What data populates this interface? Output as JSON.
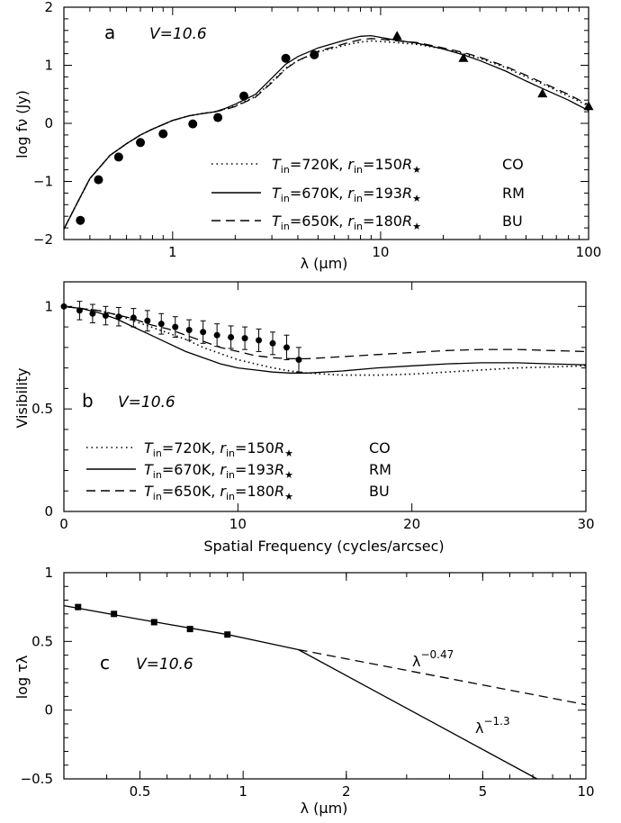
{
  "chart_data": [
    {
      "panel": "a",
      "type": "line",
      "label": "a",
      "annotation": "V=10.6",
      "xlabel": "λ (μm)",
      "ylabel": "log fν (Jy)",
      "xscale": "log",
      "xlim": [
        0.3,
        100
      ],
      "ylim": [
        -2,
        2
      ],
      "xticks": [
        1,
        10,
        100
      ],
      "xticklabels": [
        "1",
        "10",
        "100"
      ],
      "yticks": [
        -2,
        -1,
        0,
        1,
        2
      ],
      "yticklabels": [
        "−2",
        "−1",
        "0",
        "1",
        "2"
      ],
      "legend": {
        "placement": "bottom-right",
        "entries": [
          {
            "style": "dotted",
            "t_in": "720K",
            "r_in": "150",
            "tag": "CO"
          },
          {
            "style": "solid",
            "t_in": "670K",
            "r_in": "193",
            "tag": "RM"
          },
          {
            "style": "dashed",
            "t_in": "650K",
            "r_in": "180",
            "tag": "BU"
          }
        ]
      },
      "series": [
        {
          "style": "solid",
          "x": [
            0.3,
            0.35,
            0.4,
            0.5,
            0.6,
            0.7,
            0.8,
            1.0,
            1.2,
            1.4,
            1.6,
            1.8,
            2.0,
            2.5,
            3.0,
            3.5,
            4.0,
            5.0,
            6.0,
            7.0,
            8.0,
            9.0,
            10,
            12,
            15,
            20,
            25,
            30,
            40,
            50,
            60,
            80,
            100
          ],
          "y": [
            -1.82,
            -1.35,
            -0.95,
            -0.55,
            -0.35,
            -0.2,
            -0.1,
            0.05,
            0.13,
            0.17,
            0.2,
            0.26,
            0.33,
            0.5,
            0.78,
            1.02,
            1.15,
            1.3,
            1.38,
            1.45,
            1.5,
            1.51,
            1.48,
            1.43,
            1.38,
            1.28,
            1.18,
            1.08,
            0.9,
            0.73,
            0.6,
            0.4,
            0.22
          ]
        },
        {
          "style": "dotted",
          "x": [
            0.3,
            0.35,
            0.4,
            0.5,
            0.6,
            0.7,
            0.8,
            1.0,
            1.2,
            1.4,
            1.6,
            1.8,
            2.0,
            2.5,
            3.0,
            3.5,
            4.0,
            5.0,
            6.0,
            7.0,
            8.0,
            9.0,
            10,
            12,
            15,
            20,
            25,
            30,
            40,
            50,
            60,
            80,
            100
          ],
          "y": [
            -1.82,
            -1.35,
            -0.95,
            -0.55,
            -0.35,
            -0.2,
            -0.1,
            0.05,
            0.13,
            0.17,
            0.2,
            0.25,
            0.3,
            0.46,
            0.72,
            0.95,
            1.08,
            1.23,
            1.3,
            1.36,
            1.4,
            1.42,
            1.41,
            1.39,
            1.36,
            1.28,
            1.2,
            1.12,
            0.96,
            0.8,
            0.68,
            0.47,
            0.3
          ]
        },
        {
          "style": "dashed",
          "x": [
            0.3,
            0.35,
            0.4,
            0.5,
            0.6,
            0.7,
            0.8,
            1.0,
            1.2,
            1.4,
            1.6,
            1.8,
            2.0,
            2.5,
            3.0,
            3.5,
            4.0,
            5.0,
            6.0,
            7.0,
            8.0,
            9.0,
            10,
            12,
            15,
            20,
            25,
            30,
            40,
            50,
            60,
            80,
            100
          ],
          "y": [
            -1.82,
            -1.35,
            -0.95,
            -0.55,
            -0.35,
            -0.2,
            -0.1,
            0.05,
            0.13,
            0.17,
            0.2,
            0.24,
            0.29,
            0.45,
            0.7,
            0.94,
            1.08,
            1.24,
            1.32,
            1.39,
            1.44,
            1.46,
            1.45,
            1.42,
            1.39,
            1.3,
            1.22,
            1.14,
            0.98,
            0.83,
            0.7,
            0.5,
            0.32
          ]
        }
      ],
      "points": {
        "circles": {
          "x": [
            0.36,
            0.44,
            0.55,
            0.7,
            0.9,
            1.25,
            1.65,
            2.2,
            3.5,
            4.8
          ],
          "y": [
            -1.67,
            -0.97,
            -0.58,
            -0.33,
            -0.18,
            -0.01,
            0.1,
            0.47,
            1.12,
            1.18
          ]
        },
        "triangles": {
          "x": [
            12,
            25,
            60,
            100
          ],
          "y": [
            1.5,
            1.12,
            0.51,
            0.29
          ]
        }
      }
    },
    {
      "panel": "b",
      "type": "line",
      "label": "b",
      "annotation": "V=10.6",
      "xlabel": "Spatial Frequency (cycles/arcsec)",
      "ylabel": "Visibility",
      "xlim": [
        0,
        30
      ],
      "ylim": [
        0,
        1.12
      ],
      "xticks": [
        0,
        10,
        20,
        30
      ],
      "xticklabels": [
        "0",
        "10",
        "20",
        "30"
      ],
      "yticks": [
        0,
        0.5,
        1
      ],
      "yticklabels": [
        "0",
        "0.5",
        "1"
      ],
      "legend": {
        "placement": "bottom-left",
        "entries": [
          {
            "style": "dotted",
            "t_in": "720K",
            "r_in": "150",
            "tag": "CO"
          },
          {
            "style": "solid",
            "t_in": "670K",
            "r_in": "193",
            "tag": "RM"
          },
          {
            "style": "dashed",
            "t_in": "650K",
            "r_in": "180",
            "tag": "BU"
          }
        ]
      },
      "series": [
        {
          "style": "solid",
          "x": [
            0,
            1,
            2,
            3,
            4,
            5,
            6,
            7,
            8,
            9,
            10,
            11,
            12,
            13,
            14,
            16,
            18,
            20,
            22,
            24,
            26,
            28,
            30
          ],
          "y": [
            1.0,
            0.99,
            0.97,
            0.94,
            0.9,
            0.86,
            0.82,
            0.78,
            0.75,
            0.72,
            0.7,
            0.69,
            0.68,
            0.675,
            0.675,
            0.685,
            0.7,
            0.71,
            0.72,
            0.725,
            0.725,
            0.72,
            0.715
          ]
        },
        {
          "style": "dotted",
          "x": [
            0,
            1,
            2,
            3,
            4,
            5,
            6,
            7,
            8,
            9,
            10,
            11,
            12,
            13,
            14,
            16,
            18,
            20,
            22,
            24,
            26,
            28,
            30
          ],
          "y": [
            1.0,
            0.99,
            0.98,
            0.96,
            0.93,
            0.9,
            0.87,
            0.84,
            0.8,
            0.77,
            0.74,
            0.72,
            0.7,
            0.685,
            0.675,
            0.665,
            0.665,
            0.67,
            0.68,
            0.69,
            0.7,
            0.705,
            0.71
          ]
        },
        {
          "style": "dashed",
          "x": [
            0,
            1,
            2,
            3,
            4,
            5,
            6,
            7,
            8,
            9,
            10,
            11,
            12,
            13,
            14,
            16,
            18,
            20,
            22,
            24,
            26,
            28,
            30
          ],
          "y": [
            1.0,
            0.99,
            0.98,
            0.96,
            0.94,
            0.91,
            0.89,
            0.86,
            0.83,
            0.8,
            0.78,
            0.76,
            0.75,
            0.745,
            0.745,
            0.755,
            0.765,
            0.775,
            0.785,
            0.79,
            0.79,
            0.785,
            0.78
          ]
        }
      ],
      "points": {
        "x": [
          0,
          0.9,
          1.65,
          2.4,
          3.15,
          4.0,
          4.8,
          5.6,
          6.4,
          7.2,
          8.0,
          8.8,
          9.6,
          10.4,
          11.2,
          12.0,
          12.8,
          13.5
        ],
        "y": [
          1.0,
          0.98,
          0.965,
          0.955,
          0.95,
          0.945,
          0.93,
          0.915,
          0.9,
          0.885,
          0.875,
          0.86,
          0.85,
          0.845,
          0.835,
          0.82,
          0.8,
          0.74
        ],
        "err": [
          0.0,
          0.045,
          0.045,
          0.045,
          0.045,
          0.045,
          0.05,
          0.05,
          0.05,
          0.05,
          0.055,
          0.055,
          0.055,
          0.055,
          0.055,
          0.055,
          0.06,
          0.06
        ]
      }
    },
    {
      "panel": "c",
      "type": "line",
      "label": "c",
      "annotation": "V=10.6",
      "xlabel": "λ (μm)",
      "ylabel": "log τλ",
      "xscale": "log",
      "xlim": [
        0.3,
        10
      ],
      "ylim": [
        -0.5,
        1
      ],
      "xticks": [
        0.5,
        1,
        2,
        5,
        10
      ],
      "xticklabels": [
        "0.5",
        "1",
        "2",
        "5",
        "10"
      ],
      "yticks": [
        -0.5,
        0,
        0.5,
        1
      ],
      "yticklabels": [
        "−0.5",
        "0",
        "0.5",
        "1"
      ],
      "series": [
        {
          "style": "solid",
          "x": [
            0.3,
            0.5,
            0.9,
            1.45
          ],
          "y": [
            0.76,
            0.66,
            0.55,
            0.44
          ]
        },
        {
          "style": "solid",
          "x": [
            1.45,
            7.2
          ],
          "y": [
            0.44,
            -0.5
          ]
        },
        {
          "style": "dashed",
          "x": [
            1.45,
            10
          ],
          "y": [
            0.44,
            0.04
          ]
        }
      ],
      "points": {
        "x": [
          0.33,
          0.42,
          0.55,
          0.7,
          0.9
        ],
        "y": [
          0.75,
          0.7,
          0.64,
          0.59,
          0.55
        ]
      },
      "annotations": [
        {
          "text": "λ",
          "exponent": "−0.47",
          "x": 4.3,
          "y": 0.32
        },
        {
          "text": "λ",
          "exponent": "−1.3",
          "x": 4.3,
          "y": -0.11
        }
      ]
    }
  ]
}
